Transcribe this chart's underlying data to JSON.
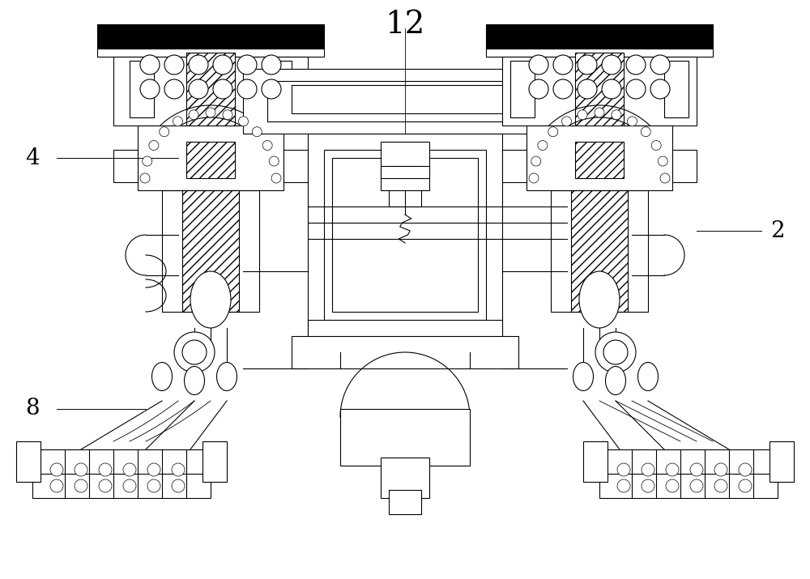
{
  "title": "12",
  "label_4": "4",
  "label_2": "2",
  "label_8": "8",
  "bg_color": "#ffffff",
  "line_color": "#000000",
  "hatch_color": "#000000",
  "black_fill": "#000000",
  "gray_fill": "#cccccc",
  "fig_width": 10.0,
  "fig_height": 7.15,
  "dpi": 100
}
